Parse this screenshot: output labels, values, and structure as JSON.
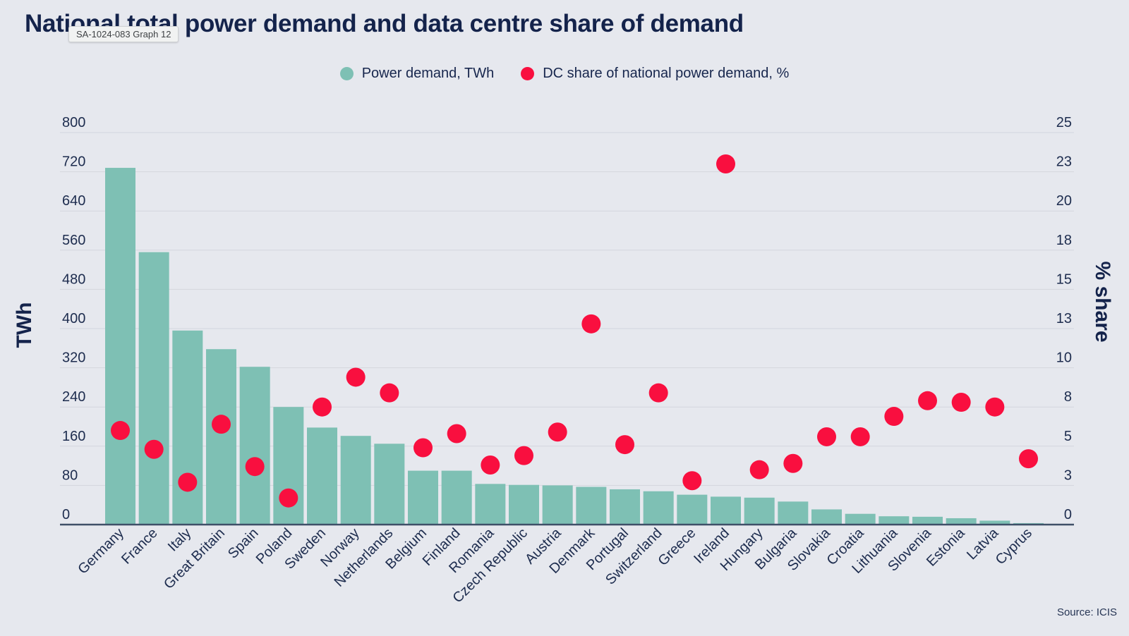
{
  "header": {
    "title": "National total power demand and data centre share of demand",
    "tooltip": "SA-1024-083 Graph 12"
  },
  "legend": {
    "items": [
      {
        "label": "Power demand, TWh",
        "color": "#7ec0b4"
      },
      {
        "label": "DC share of national power demand, %",
        "color": "#f90f3f"
      }
    ]
  },
  "axes": {
    "left_title": "TWh",
    "right_title": "% share"
  },
  "source": "Source: ICIS",
  "colors": {
    "background": "#e6e8ee",
    "bar": "#7ec0b4",
    "dot": "#f90f3f",
    "text": "#1d2c4e",
    "gridline": "#d3d6dd",
    "axis_line": "#3f5068"
  },
  "chart_data": {
    "type": "bar+scatter",
    "title": "National total power demand and data centre share of demand",
    "source": "Source: ICIS",
    "legend_position": "top",
    "grid": true,
    "categories": [
      "Germany",
      "France",
      "Italy",
      "Great Britain",
      "Spain",
      "Poland",
      "Sweden",
      "Norway",
      "Netherlands",
      "Belgium",
      "Finland",
      "Romania",
      "Czech Republic",
      "Austria",
      "Denmark",
      "Portugal",
      "Switzerland",
      "Greece",
      "Ireland",
      "Hungary",
      "Bulgaria",
      "Slovakia",
      "Croatia",
      "Lithuania",
      "Slovenia",
      "Estonia",
      "Latvia",
      "Cyprus"
    ],
    "series": [
      {
        "name": "Power demand, TWh",
        "type": "bar",
        "axis": "left",
        "color": "#7ec0b4",
        "values": [
          728,
          556,
          396,
          358,
          322,
          240,
          198,
          181,
          165,
          110,
          110,
          83,
          81,
          80,
          77,
          72,
          68,
          61,
          57,
          55,
          47,
          31,
          22,
          17,
          16,
          13,
          8,
          3
        ]
      },
      {
        "name": "DC share of national power demand, %",
        "type": "scatter",
        "axis": "right",
        "color": "#f90f3f",
        "values": [
          6.0,
          4.8,
          2.7,
          6.4,
          3.7,
          1.7,
          7.5,
          9.4,
          8.4,
          4.9,
          5.8,
          3.8,
          4.4,
          5.9,
          12.8,
          5.1,
          8.4,
          2.8,
          23.0,
          3.5,
          3.9,
          5.6,
          5.6,
          6.9,
          7.9,
          7.8,
          7.5,
          4.2
        ]
      }
    ],
    "left_axis": {
      "title": "TWh",
      "range": [
        0,
        800
      ],
      "tick_labels": [
        "0",
        "80",
        "160",
        "240",
        "320",
        "400",
        "480",
        "560",
        "640",
        "720",
        "800"
      ]
    },
    "right_axis": {
      "title": "% share",
      "range": [
        0,
        25
      ],
      "tick_labels": [
        "0",
        "3",
        "5",
        "8",
        "10",
        "13",
        "15",
        "18",
        "20",
        "23",
        "25"
      ]
    }
  }
}
